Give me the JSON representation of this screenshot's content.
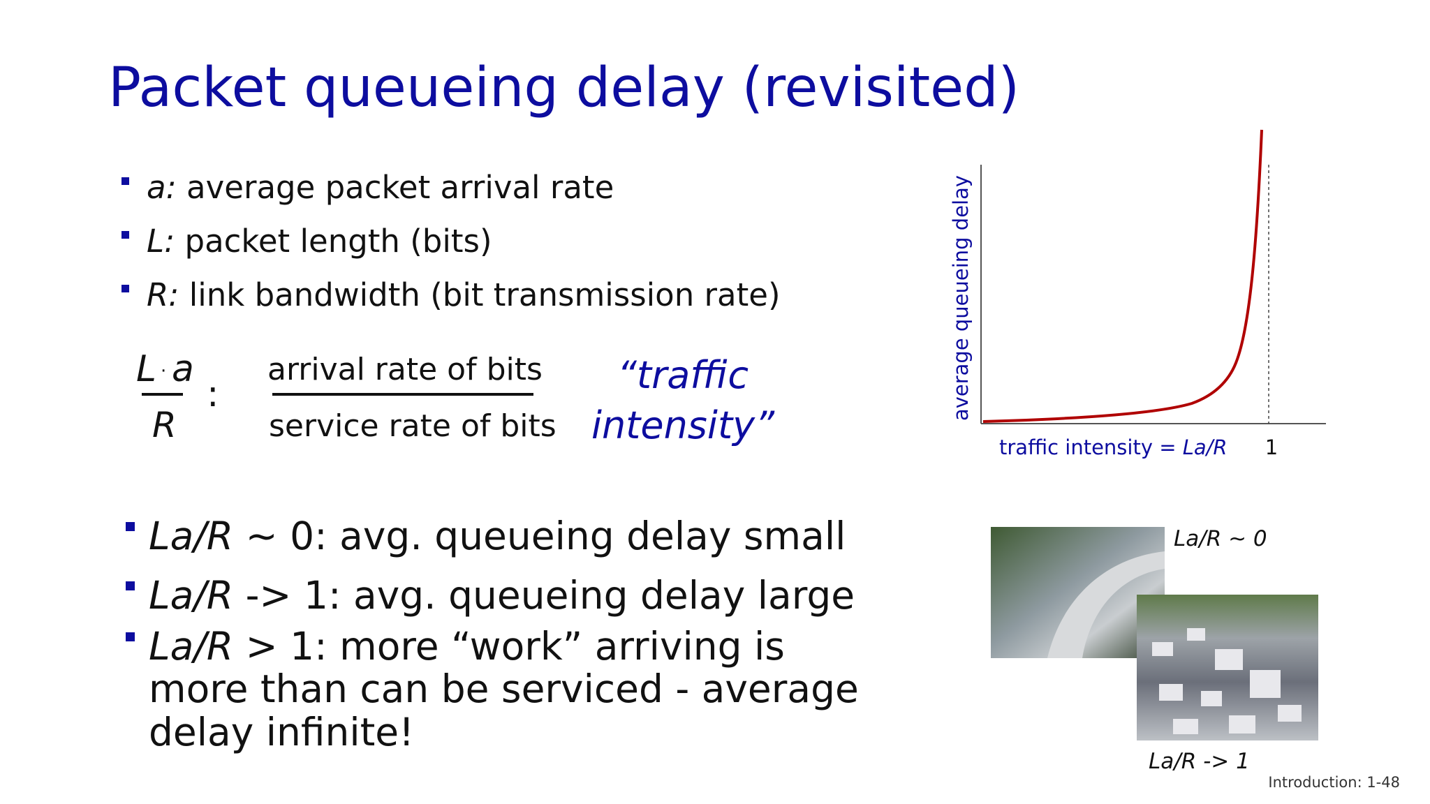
{
  "header": {
    "title": "Packet queueing delay (revisited)"
  },
  "definitions": [
    {
      "symbol": "a:",
      "text": " average packet arrival rate"
    },
    {
      "symbol": "L:",
      "text": " packet length (bits)"
    },
    {
      "symbol": "R:",
      "text": " link bandwidth (bit transmission rate)"
    }
  ],
  "formula": {
    "numerator_left": "L",
    "dot": "·",
    "numerator_right": "a",
    "denominator": "R",
    "colon": ":",
    "ratio_top": "arrival rate of bits",
    "ratio_bottom": "service rate of bits",
    "name_lines": [
      "“traffic",
      "intensity”"
    ]
  },
  "cases": [
    {
      "symbol": "La/R",
      "lines": [
        " ~ 0: avg. queueing delay small"
      ]
    },
    {
      "symbol": "La/R",
      "lines": [
        " -> 1: avg. queueing delay large"
      ]
    },
    {
      "symbol": "La/R",
      "lines": [
        " > 1: more “work” arriving  is",
        "more than can be serviced -  average",
        "delay infinite!"
      ]
    }
  ],
  "graph": {
    "y_label": "average  queueing delay",
    "x_label": "traffic intensity = ",
    "x_label_symbol": "La/R",
    "tick": "1"
  },
  "photos": {
    "top_caption": "La/R ~ 0",
    "bottom_caption": "La/R -> 1"
  },
  "footer": "Introduction: 1-48"
}
